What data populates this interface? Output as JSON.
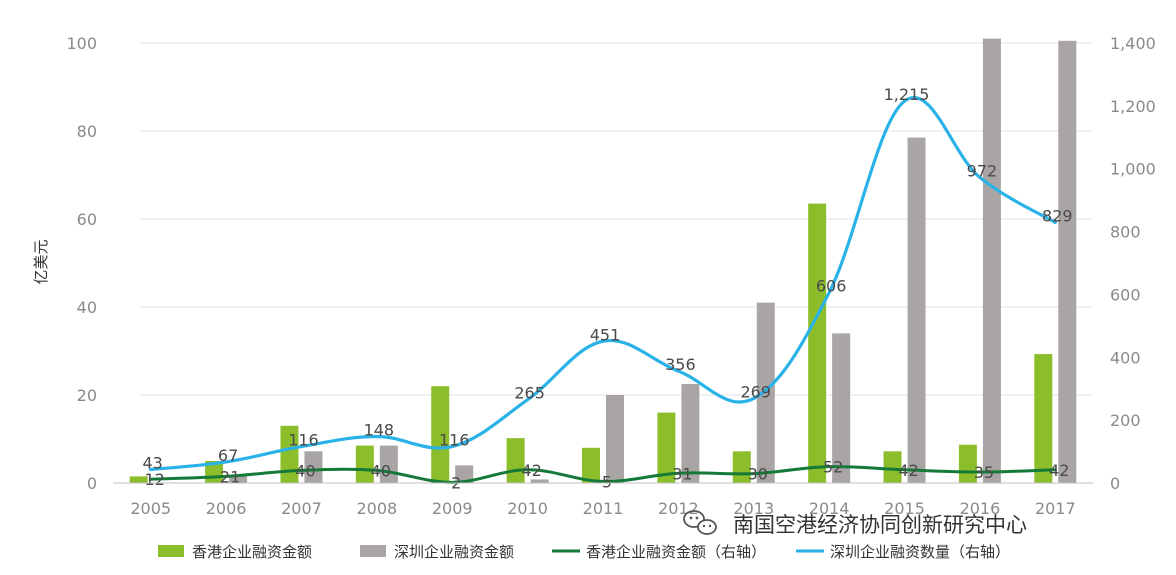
{
  "chart_data": {
    "type": "bar",
    "categories": [
      "2005",
      "2006",
      "2007",
      "2008",
      "2009",
      "2010",
      "2011",
      "2012",
      "2013",
      "2014",
      "2015",
      "2016",
      "2017"
    ],
    "ylabel": "亿美元",
    "ylim": [
      0,
      100
    ],
    "y_ticks": [
      "0",
      "20",
      "40",
      "60",
      "80",
      "100"
    ],
    "y2lim": [
      0,
      1400
    ],
    "y2_ticks": [
      "0",
      "200",
      "400",
      "600",
      "800",
      "1,000",
      "1,200",
      "1,400"
    ],
    "grid": true,
    "legend_position": "bottom",
    "series": [
      {
        "name": "香港企业融资金额",
        "type": "bar",
        "axis": "left",
        "color": "#8cbd2b",
        "values": [
          1.5,
          5,
          13,
          8.5,
          22,
          10.2,
          8,
          16,
          7.2,
          63.5,
          7.2,
          8.7,
          29.3
        ]
      },
      {
        "name": "深圳企业融资金额",
        "type": "bar",
        "axis": "left",
        "color": "#aaa5a5",
        "values": [
          0,
          1.5,
          7.2,
          8.5,
          4,
          0.8,
          20,
          22.5,
          41,
          34,
          78.5,
          101,
          100.5
        ]
      },
      {
        "name": "香港企业融资金额（右轴）",
        "type": "line",
        "axis": "right",
        "color": "#157a38",
        "values": [
          12,
          21,
          40,
          40,
          2,
          42,
          5,
          31,
          30,
          52,
          42,
          35,
          42
        ],
        "labels": [
          "12",
          "21",
          "40",
          "40",
          "2",
          "42",
          "5",
          "31",
          "30",
          "52",
          "42",
          "35",
          "42"
        ]
      },
      {
        "name": "深圳企业融资数量（右轴）",
        "type": "line",
        "axis": "right",
        "color": "#29b2e8",
        "values": [
          43,
          67,
          116,
          148,
          116,
          265,
          451,
          356,
          269,
          606,
          1215,
          972,
          829
        ],
        "labels": [
          "43",
          "67",
          "116",
          "148",
          "116",
          "265",
          "451",
          "356",
          "269",
          "606",
          "1,215",
          "972",
          "829"
        ]
      }
    ]
  },
  "watermark": {
    "text": "南国空港经济协同创新研究中心"
  }
}
